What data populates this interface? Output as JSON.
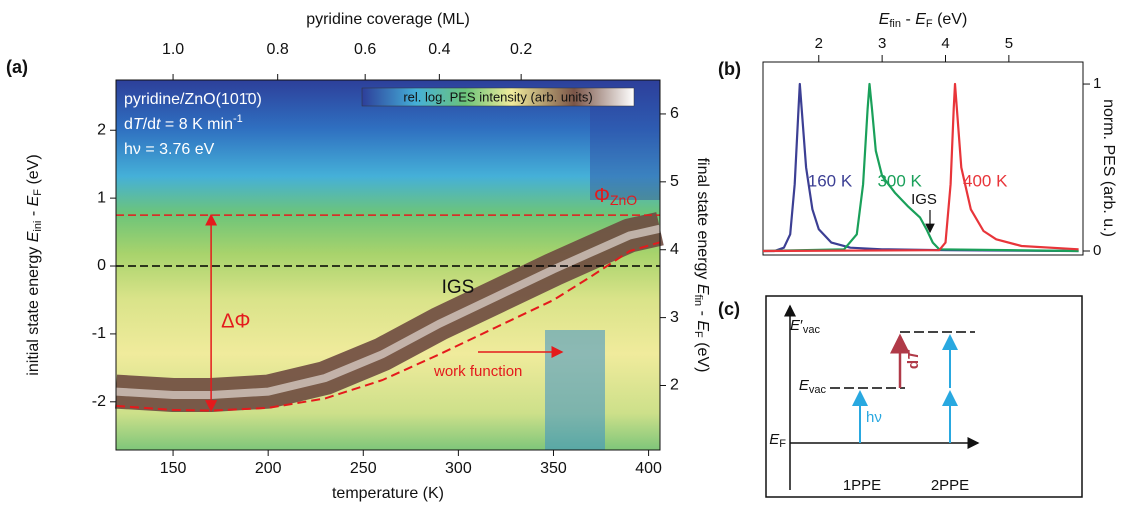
{
  "panel_labels": [
    "(a)",
    "(b)",
    "(c)"
  ],
  "chart_data": [
    {
      "type": "heatmap",
      "xlabel": "temperature (K)",
      "ylabel": [
        "initial state energy ",
        "E",
        "ini",
        " - ",
        "E",
        "F",
        " (eV)"
      ],
      "y2label": [
        "final state energy ",
        "E",
        "fin",
        " - ",
        "E",
        "F",
        " (eV)"
      ],
      "x2label": "pyridine coverage (ML)",
      "xlim": [
        120,
        406
      ],
      "xticks": [
        150,
        200,
        250,
        300,
        350,
        400
      ],
      "ylim": [
        -2.71,
        2.74
      ],
      "yticks": [
        -2,
        -1,
        0,
        1,
        2
      ],
      "y2lim": [
        1.05,
        6.5
      ],
      "y2ticks": [
        2,
        3,
        4,
        5,
        6
      ],
      "x2ticks": [
        {
          "value": 1.0,
          "label": "1.0"
        },
        {
          "value": 0.8,
          "label": "0.8"
        },
        {
          "value": 0.6,
          "label": "0.6"
        },
        {
          "value": 0.4,
          "label": "0.4"
        },
        {
          "value": 0.2,
          "label": "0.2"
        }
      ],
      "x2tick_temperatures": [
        150,
        205,
        251,
        290,
        333
      ],
      "colorbar_label": "rel. log. PES intensity (arb. units)",
      "info": [
        [
          "pyridine/ZnO(101̄0)"
        ],
        [
          "d",
          "T",
          "/d",
          "t",
          " = 8 K min",
          "-1"
        ],
        [
          "hν = 3.76 eV"
        ]
      ],
      "ridge": {
        "x": [
          120,
          150,
          170,
          200,
          230,
          260,
          290,
          320,
          350,
          370,
          390,
          406
        ],
        "values": [
          -1.85,
          -1.9,
          -1.9,
          -1.85,
          -1.65,
          -1.3,
          -0.85,
          -0.45,
          -0.05,
          0.2,
          0.45,
          0.55
        ],
        "color": "#6e4a40"
      },
      "work_function": {
        "x": [
          120,
          150,
          170,
          200,
          230,
          260,
          290,
          320,
          350,
          370,
          390,
          406
        ],
        "values": [
          -2.06,
          -2.12,
          -2.13,
          -2.09,
          -1.95,
          -1.68,
          -1.3,
          -0.9,
          -0.5,
          -0.15,
          0.22,
          0.35
        ],
        "color": "#e41a1c",
        "label": "work function"
      },
      "hlines": [
        {
          "value": 0.75,
          "color": "#e41a1c",
          "label": [
            "Φ",
            "ZnO"
          ]
        },
        {
          "value": 0,
          "color": "#000000"
        }
      ],
      "annotations": {
        "igs": "IGS",
        "delta_phi": "ΔΦ"
      }
    },
    {
      "type": "line",
      "xlabel": [
        "E",
        "fin",
        " - ",
        "E",
        "F",
        " (eV)"
      ],
      "ylabel": "norm. PES (arb. u.)",
      "xlim": [
        1.12,
        6.17
      ],
      "xticks": [
        2,
        3,
        4,
        5
      ],
      "ylim": [
        -0.024,
        1.132
      ],
      "yticks": [
        0,
        1
      ],
      "annotation": "IGS",
      "series": [
        {
          "name": "160 K",
          "color": "#3c3f94",
          "x": [
            1.12,
            1.3,
            1.45,
            1.55,
            1.62,
            1.68,
            1.7,
            1.73,
            1.8,
            1.9,
            2.0,
            2.2,
            2.5,
            3.0,
            4.0,
            6.1
          ],
          "values": [
            0.0,
            0.0,
            0.02,
            0.1,
            0.4,
            0.85,
            1.0,
            0.85,
            0.5,
            0.25,
            0.13,
            0.05,
            0.02,
            0.01,
            0.005,
            0.0
          ]
        },
        {
          "name": "300 K",
          "color": "#1aa05a",
          "x": [
            1.12,
            2.4,
            2.6,
            2.7,
            2.77,
            2.8,
            2.84,
            2.9,
            3.0,
            3.2,
            3.4,
            3.6,
            3.7,
            3.8,
            3.9,
            6.1
          ],
          "values": [
            0.0,
            0.01,
            0.1,
            0.4,
            0.85,
            1.0,
            0.85,
            0.6,
            0.45,
            0.35,
            0.27,
            0.2,
            0.13,
            0.05,
            0.01,
            0.0
          ]
        },
        {
          "name": "400 K",
          "color": "#e8353a",
          "x": [
            1.12,
            3.9,
            4.0,
            4.08,
            4.13,
            4.15,
            4.18,
            4.25,
            4.4,
            4.6,
            4.8,
            5.2,
            6.1
          ],
          "values": [
            0.0,
            0.005,
            0.05,
            0.4,
            0.85,
            1.0,
            0.85,
            0.5,
            0.25,
            0.12,
            0.07,
            0.03,
            0.01
          ]
        }
      ]
    }
  ],
  "diagram": {
    "evac_prime": [
      "E",
      "′",
      "vac"
    ],
    "evac": [
      "E",
      "vac"
    ],
    "ef": [
      "E",
      "F"
    ],
    "hv": "hν",
    "dt": [
      "d",
      "T"
    ],
    "one_ppe": "1PPE",
    "two_ppe": "2PPE"
  }
}
